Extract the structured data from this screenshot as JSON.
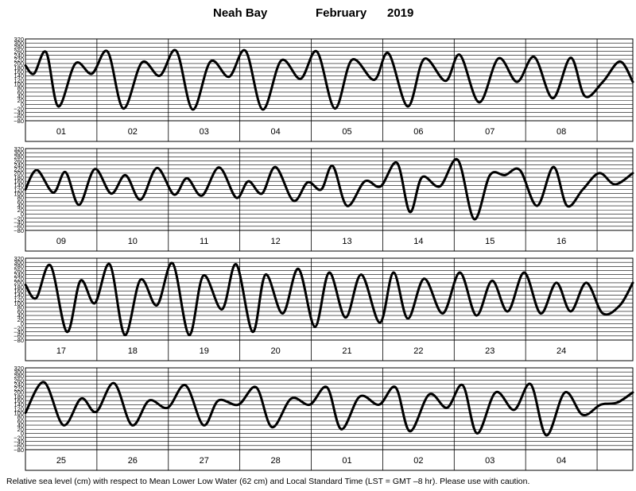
{
  "title": {
    "location": "Neah Bay",
    "month": "February",
    "year": "2019"
  },
  "footnote": "Relative sea level (cm) with respect to Mean Lower Low Water (62 cm) and Local Standard Time (LST = GMT –8 hr). Please use with caution.",
  "chart_data": {
    "type": "line",
    "ylabel": "",
    "xlabel": "",
    "ylim": [
      -80,
      320
    ],
    "y_ticks": [
      320,
      300,
      280,
      260,
      240,
      220,
      200,
      180,
      160,
      140,
      120,
      100,
      80,
      60,
      40,
      20,
      0,
      -20,
      -40,
      -60,
      -80
    ],
    "y_tick_labels": [
      "320",
      "300",
      "280",
      "260",
      "240",
      "220",
      "200",
      "180",
      "160",
      "140",
      "120",
      "100",
      "80",
      "60",
      "40",
      "20",
      "0",
      "−20",
      "−40",
      "−60",
      "−80"
    ],
    "grid": true,
    "x_unit": "day (0 = start of first labelled day, 0.5 = noon)",
    "panels": [
      {
        "days": [
          "01",
          "02",
          "03",
          "04",
          "05",
          "06",
          "07",
          "08"
        ],
        "series": [
          {
            "x": [
              -0.5,
              -0.38,
              -0.21,
              -0.04,
              0.2,
              0.43,
              0.65,
              0.87,
              1.13,
              1.38,
              1.61,
              1.84,
              2.09,
              2.35,
              2.58,
              2.82,
              3.08,
              3.35,
              3.58,
              3.83,
              4.07,
              4.38,
              4.58,
              4.85,
              5.08,
              5.38,
              5.58,
              5.85,
              6.12,
              6.38,
              6.62,
              6.88,
              7.13,
              7.33,
              7.58,
              7.82,
              8.0
            ],
            "y": [
              190,
              150,
              255,
              -10,
              200,
              150,
              258,
              -20,
              205,
              140,
              262,
              -25,
              210,
              135,
              262,
              -25,
              215,
              125,
              258,
              -20,
              218,
              120,
              250,
              -10,
              222,
              115,
              242,
              10,
              225,
              110,
              232,
              30,
              228,
              40,
              110,
              210,
              110
            ]
          }
        ]
      },
      {
        "days": [
          "09",
          "10",
          "11",
          "12",
          "13",
          "14",
          "15",
          "16"
        ],
        "series": [
          {
            "x": [
              -0.5,
              -0.34,
              -0.11,
              0.06,
              0.25,
              0.47,
              0.7,
              0.9,
              1.11,
              1.34,
              1.58,
              1.76,
              1.97,
              2.21,
              2.45,
              2.62,
              2.81,
              3.0,
              3.25,
              3.45,
              3.64,
              3.8,
              4.0,
              4.25,
              4.47,
              4.7,
              4.88,
              5.05,
              5.3,
              5.55,
              5.78,
              6.0,
              6.21,
              6.42,
              6.66,
              6.89,
              7.08,
              7.3,
              7.53,
              7.75,
              8.0
            ],
            "y": [
              120,
              215,
              105,
              205,
              45,
              220,
              100,
              190,
              70,
              225,
              95,
              175,
              90,
              228,
              80,
              160,
              100,
              230,
              65,
              155,
              120,
              235,
              40,
              160,
              135,
              250,
              10,
              180,
              135,
              265,
              -25,
              190,
              190,
              215,
              40,
              230,
              40,
              120,
              200,
              145,
              200
            ]
          }
        ]
      },
      {
        "days": [
          "17",
          "18",
          "19",
          "20",
          "21",
          "22",
          "23",
          "24"
        ],
        "series": [
          {
            "x": [
              -0.5,
              -0.35,
              -0.15,
              0.08,
              0.27,
              0.47,
              0.68,
              0.89,
              1.11,
              1.34,
              1.56,
              1.79,
              1.99,
              2.25,
              2.45,
              2.68,
              2.86,
              3.1,
              3.32,
              3.55,
              3.75,
              3.98,
              4.2,
              4.46,
              4.65,
              4.85,
              5.08,
              5.34,
              5.58,
              5.81,
              6.03,
              6.25,
              6.48,
              6.71,
              6.93,
              7.13,
              7.35,
              7.58,
              7.82,
              8.0
            ],
            "y": [
              190,
              125,
              285,
              -40,
              210,
              100,
              290,
              -55,
              215,
              90,
              295,
              -55,
              235,
              70,
              290,
              -40,
              240,
              50,
              268,
              -15,
              250,
              30,
              240,
              5,
              250,
              25,
              220,
              50,
              250,
              40,
              210,
              60,
              250,
              50,
              200,
              60,
              200,
              50,
              90,
              200
            ]
          }
        ]
      },
      {
        "days": [
          "25",
          "26",
          "27",
          "28",
          "01",
          "02",
          "03",
          "04"
        ],
        "series": [
          {
            "x": [
              -0.5,
              -0.24,
              0.03,
              0.28,
              0.49,
              0.74,
              0.99,
              1.23,
              1.49,
              1.74,
              1.99,
              2.2,
              2.48,
              2.73,
              2.95,
              3.22,
              3.48,
              3.72,
              3.92,
              4.18,
              4.45,
              4.68,
              4.88,
              5.15,
              5.4,
              5.62,
              5.82,
              6.08,
              6.34,
              6.57,
              6.79,
              7.05,
              7.3,
              7.55,
              7.78,
              8.0
            ],
            "y": [
              100,
              250,
              40,
              170,
              105,
              245,
              40,
              160,
              125,
              235,
              40,
              160,
              140,
              225,
              30,
              170,
              140,
              225,
              20,
              180,
              140,
              225,
              10,
              190,
              125,
              235,
              0,
              200,
              115,
              240,
              -10,
              200,
              90,
              140,
              150,
              200
            ]
          }
        ]
      }
    ]
  }
}
